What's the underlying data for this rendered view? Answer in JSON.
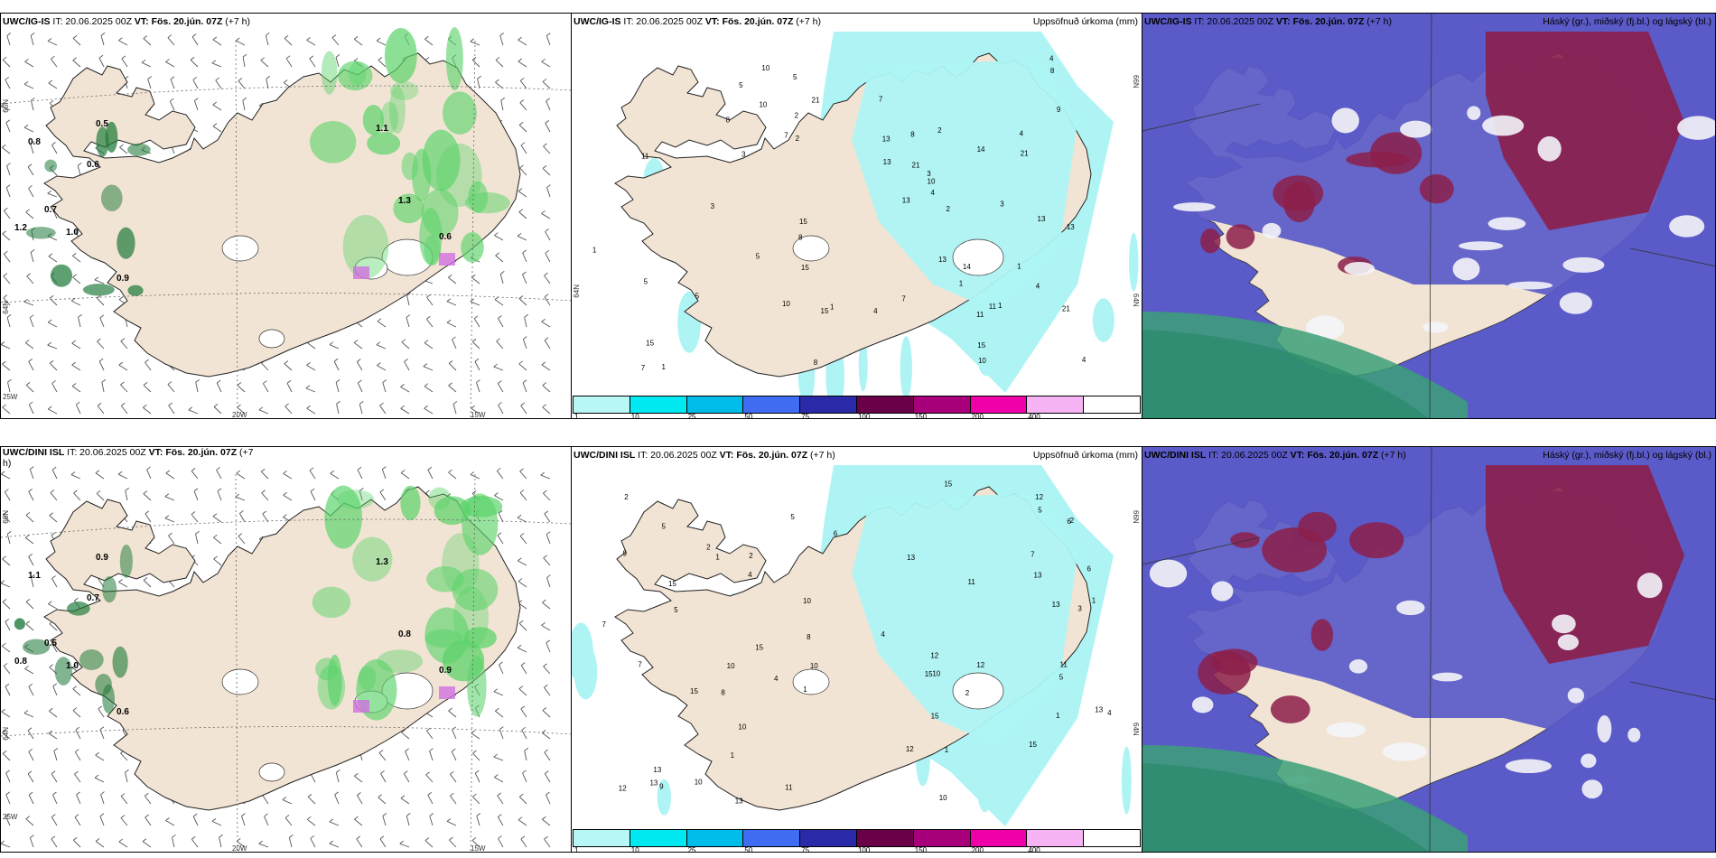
{
  "panels": {
    "top_left": {
      "source": "UWC/IG-IS",
      "it": "IT: 20.06.2025 00Z",
      "vt_prefix": "VT:",
      "vt": "Fös. 20.jún. 07Z",
      "lead": "(+7 h)",
      "right_title": ""
    },
    "top_mid": {
      "source": "UWC/IG-IS",
      "it": "IT: 20.06.2025 00Z",
      "vt_prefix": "VT:",
      "vt": "Fös. 20.jún. 07Z",
      "lead": "(+7 h)",
      "right_title": "Uppsöfnuð úrkoma (mm)"
    },
    "top_right": {
      "source": "UWC/IG-IS",
      "it": "IT: 20.06.2025 00Z",
      "vt_prefix": "VT:",
      "vt": "Fös. 20.jún. 07Z",
      "lead": "(+7 h)",
      "right_title": "Háský (gr.), miðský (fj.bl.) og lágský (bl.)"
    },
    "bot_left": {
      "source": "UWC/DINI ISL",
      "it": "IT: 20.06.2025 00Z",
      "vt_prefix": "VT:",
      "vt": "Fös. 20.jún. 07Z",
      "lead": "(+7",
      "right_title": ""
    },
    "bot_left_wrap": "h)",
    "bot_mid": {
      "source": "UWC/DINI ISL",
      "it": "IT: 20.06.2025 00Z",
      "vt_prefix": "VT:",
      "vt": "Fös. 20.jún. 07Z",
      "lead": "(+7 h)",
      "right_title": "Uppsöfnuð úrkoma (mm)"
    },
    "bot_right": {
      "source": "UWC/DINI ISL",
      "it": "IT: 20.06.2025 00Z",
      "vt_prefix": "VT:",
      "vt": "Fös. 20.jún. 07Z",
      "lead": "(+7 h)",
      "right_title": "Háský (gr.), miðský (fj.bl.) og lágský (bl.)"
    }
  },
  "grid_labels": {
    "lat_66": "66N",
    "lat_64": "64N",
    "lon_25": "25W",
    "lon_20": "20W",
    "lon_15": "15W"
  },
  "colorbar": {
    "labels": [
      "1",
      "10",
      "25",
      "50",
      "75",
      "100",
      "150",
      "200",
      "400",
      ""
    ],
    "colors": [
      "#b9f7f7",
      "#00e8f0",
      "#00bce8",
      "#3f6cf0",
      "#2a2aa8",
      "#6a0048",
      "#a8007a",
      "#f000a8",
      "#f6b4f4",
      "#ffffff"
    ]
  },
  "colors": {
    "land": "#f2e4d4",
    "green": "#5bd36a",
    "cyan": "#aef4f4",
    "cloud_blue": "#5a5ac8",
    "cloud_red": "#8c1e4a",
    "cloud_green": "#3ca078"
  },
  "wind_values_top": [
    "0.5",
    "0.8",
    "0.6",
    "1.2",
    "1.0",
    "0.9",
    "0.7",
    "1.1",
    "1.3",
    "0.6"
  ],
  "wind_values_bot": [
    "0.9",
    "1.1",
    "0.7",
    "0.8",
    "1.0",
    "0.6",
    "0.5",
    "1.3",
    "0.8",
    "0.9"
  ],
  "precip_values_top": [
    "3",
    "5",
    "7",
    "8",
    "10",
    "11",
    "14",
    "21",
    "13",
    "15",
    "2",
    "1",
    "4",
    "9"
  ],
  "precip_values_bot": [
    "5",
    "8",
    "9",
    "7",
    "6",
    "4",
    "3",
    "2",
    "1",
    "15",
    "13",
    "11",
    "12",
    "10"
  ]
}
